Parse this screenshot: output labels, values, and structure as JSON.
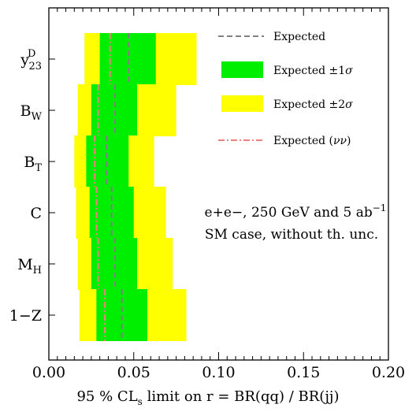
{
  "chart_data": {
    "type": "band",
    "xlabel": "95 % CL_s limit on  r = BR(qq) / BR(jj)",
    "xlim": [
      0.0,
      0.2
    ],
    "xticks": [
      "0.00",
      "0.05",
      "0.10",
      "0.15",
      "0.20"
    ],
    "grid": false,
    "legend_position": "top-right",
    "annotation_lines": [
      "e+e−, 250 GeV and 5 ab^−1",
      "SM case, without th. unc."
    ],
    "legend": [
      {
        "label": "Expected",
        "kind": "line-dashed",
        "color": "#808080"
      },
      {
        "label": "Expected ±1σ",
        "kind": "band",
        "color": "#00ee00"
      },
      {
        "label": "Expected ±2σ",
        "kind": "band",
        "color": "#ffff00"
      },
      {
        "label": "Expected (νν)",
        "kind": "line-dashdot",
        "color": "#f08080"
      }
    ],
    "colors": {
      "two_sigma": "#ffff00",
      "one_sigma": "#00ee00",
      "expected": "#808080",
      "expected_nunu": "#f08080"
    },
    "categories": [
      {
        "label": "y_23^D",
        "two_sigma": [
          0.021,
          0.087
        ],
        "one_sigma": [
          0.03,
          0.063
        ],
        "expected": 0.047,
        "expected_nunu": 0.036
      },
      {
        "label": "B_W",
        "two_sigma": [
          0.017,
          0.075
        ],
        "one_sigma": [
          0.025,
          0.052
        ],
        "expected": 0.039,
        "expected_nunu": 0.029
      },
      {
        "label": "B_T",
        "two_sigma": [
          0.015,
          0.062
        ],
        "one_sigma": [
          0.022,
          0.047
        ],
        "expected": 0.034,
        "expected_nunu": 0.027
      },
      {
        "label": "C",
        "two_sigma": [
          0.016,
          0.069
        ],
        "one_sigma": [
          0.024,
          0.05
        ],
        "expected": 0.037,
        "expected_nunu": 0.028
      },
      {
        "label": "M_H",
        "two_sigma": [
          0.017,
          0.073
        ],
        "one_sigma": [
          0.025,
          0.052
        ],
        "expected": 0.039,
        "expected_nunu": 0.029
      },
      {
        "label": "1−Z",
        "two_sigma": [
          0.018,
          0.081
        ],
        "one_sigma": [
          0.028,
          0.058
        ],
        "expected": 0.043,
        "expected_nunu": 0.033
      }
    ]
  }
}
